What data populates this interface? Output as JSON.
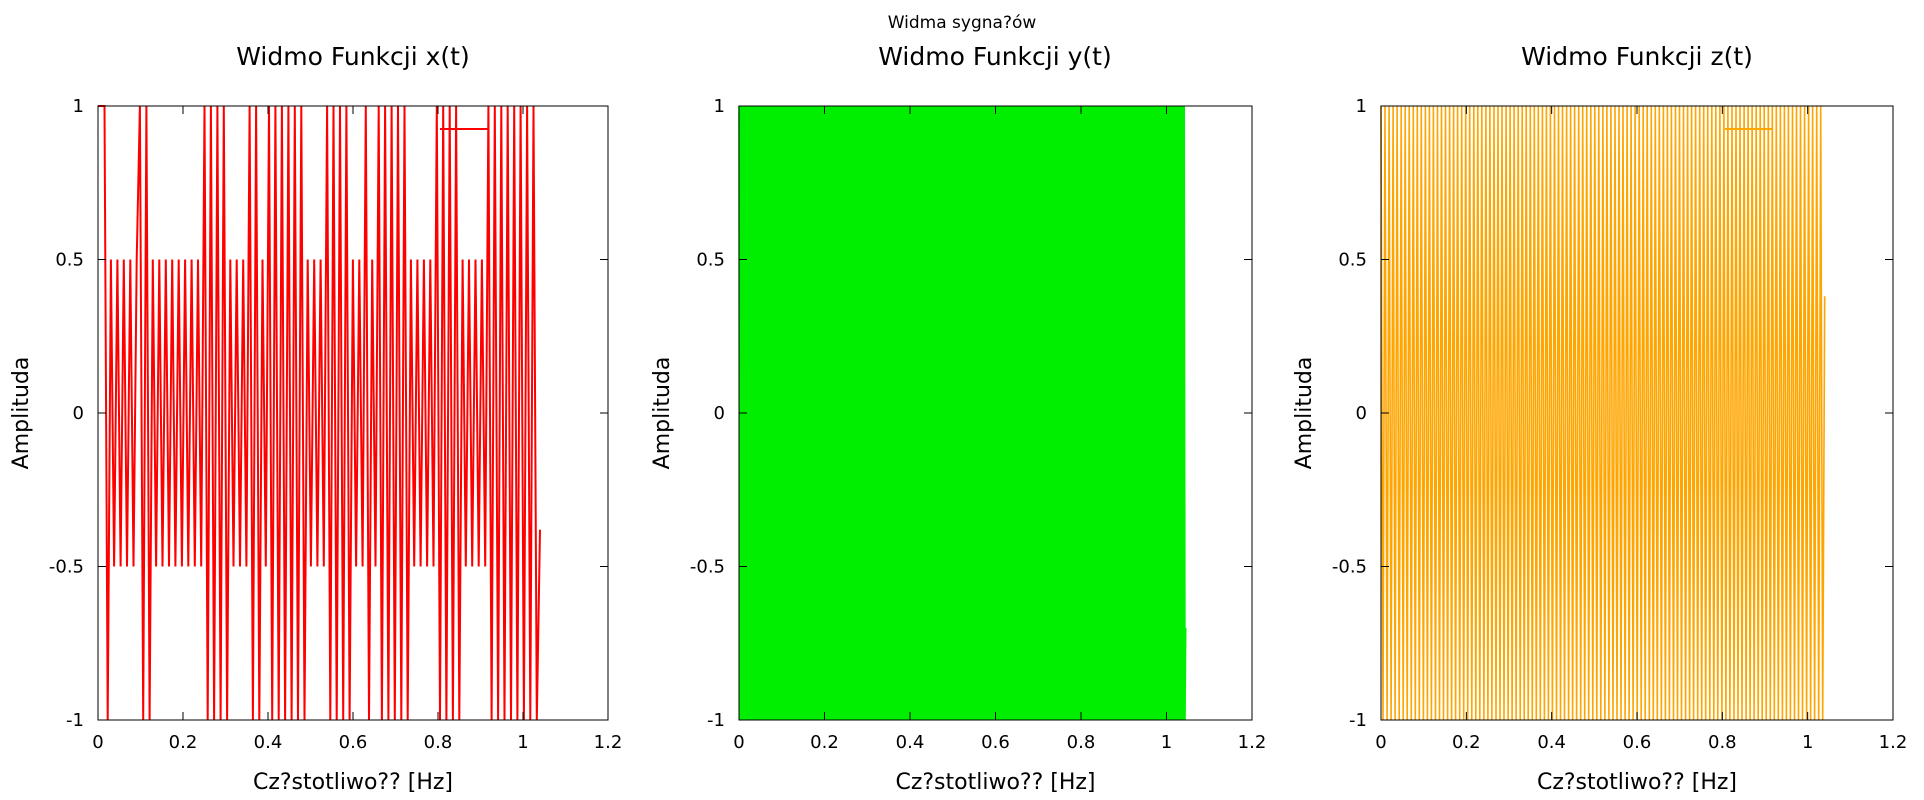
{
  "figure_title": "Widma sygna?ów",
  "chart_data": [
    {
      "type": "line",
      "title": "Widmo Funkcji x(t)",
      "xlabel": "Cz?stotliwo?? [Hz]",
      "ylabel": "Amplituda",
      "xlim": [
        0,
        1.2
      ],
      "ylim": [
        -1,
        1
      ],
      "xticks": [
        "0",
        "0.2",
        "0.4",
        "0.6",
        "0.8",
        "1",
        "1.2"
      ],
      "yticks": [
        "-1",
        "-0.5",
        "0",
        "0.5",
        "1"
      ],
      "legend_position": "top-right",
      "grid": false,
      "series": [
        {
          "color": "#ff0000",
          "x_range": [
            0,
            1.04
          ],
          "y_end": -0.38,
          "peaks": [
            1,
            1,
            1,
            -1,
            0.5,
            -0.5,
            0.5,
            -0.5,
            0.5,
            -0.5,
            0.5,
            -0.5,
            0.5,
            1,
            -1,
            1,
            -1,
            0.5,
            -0.5,
            0.5,
            -0.5,
            0.5,
            -0.5,
            0.5,
            -0.5,
            0.5,
            -0.5,
            0.5,
            -0.5,
            0.5,
            -0.5,
            0.5,
            -0.5,
            1,
            -1,
            1,
            -1,
            1,
            -1,
            1,
            -1,
            0.5,
            -0.5,
            0.5,
            -0.5,
            0.5,
            -0.5,
            1,
            -1,
            1,
            -1,
            0.5,
            -0.5,
            1,
            -1,
            1,
            -1,
            1,
            -1,
            1,
            -1,
            1,
            -1,
            1,
            -1,
            0.5,
            -0.5,
            0.5,
            -0.5,
            0.5,
            -0.5,
            1,
            -1,
            1,
            -1,
            1,
            -1,
            1,
            -1,
            0.5,
            -0.5,
            0.5,
            -0.5,
            1,
            -1,
            0.5,
            -0.5,
            1,
            -1,
            1,
            -1,
            1,
            -1,
            1,
            -1,
            1,
            -1,
            0.5,
            -0.5,
            0.5,
            -0.5,
            0.5,
            -0.5,
            0.5,
            -0.5,
            1,
            -1,
            1,
            -1,
            1,
            -1,
            1,
            -1,
            0.5,
            -0.5,
            0.5,
            -0.5,
            0.5,
            -0.5,
            0.5,
            -0.5,
            1,
            -1,
            1,
            -1,
            1,
            -1,
            1,
            -1,
            1,
            -1,
            1,
            -1,
            1,
            -1,
            1,
            -1
          ]
        }
      ]
    },
    {
      "type": "line",
      "title": "Widmo Funkcji y(t)",
      "xlabel": "Cz?stotliwo?? [Hz]",
      "ylabel": "Amplituda",
      "xlim": [
        0,
        1.2
      ],
      "ylim": [
        -1,
        1
      ],
      "xticks": [
        "0",
        "0.2",
        "0.4",
        "0.6",
        "0.8",
        "1",
        "1.2"
      ],
      "yticks": [
        "-1",
        "-0.5",
        "0",
        "0.5",
        "1"
      ],
      "legend_position": "top-right",
      "grid": false,
      "series": [
        {
          "color": "#00ee00",
          "x_range": [
            0,
            1.045
          ],
          "y_end": -0.7,
          "cycles": 300,
          "amplitude": 1
        }
      ]
    },
    {
      "type": "line",
      "title": "Widmo Funkcji z(t)",
      "xlabel": "Cz?stotliwo?? [Hz]",
      "ylabel": "Amplituda",
      "xlim": [
        0,
        1.2
      ],
      "ylim": [
        -1,
        1
      ],
      "xticks": [
        "0",
        "0.2",
        "0.4",
        "0.6",
        "0.8",
        "1",
        "1.2"
      ],
      "yticks": [
        "-1",
        "-0.5",
        "0",
        "0.5",
        "1"
      ],
      "legend_position": "top-right",
      "grid": false,
      "series": [
        {
          "color": "#ffa500",
          "x_range": [
            0,
            1.04
          ],
          "y_end": 0.38,
          "cycles": 110,
          "amplitude": 1
        }
      ]
    }
  ]
}
